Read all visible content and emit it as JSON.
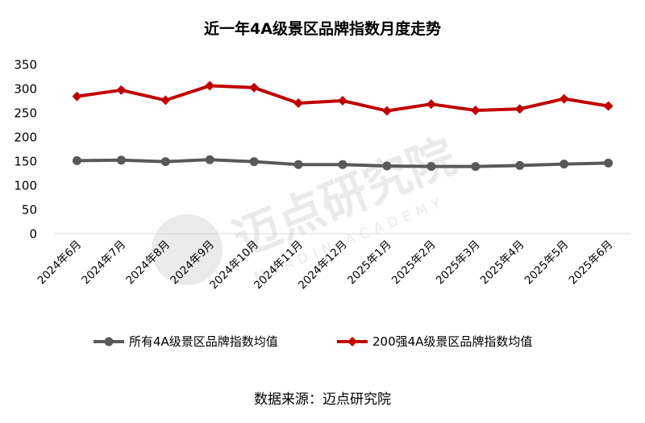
{
  "watermark": {
    "cn": "迈点研究院",
    "en": "MEADIN ACADEMY"
  },
  "source_text": "数据来源：迈点研究院",
  "chart_data": {
    "type": "line",
    "title": "近一年4A级景区品牌指数月度走势",
    "xlabel": "",
    "ylabel": "",
    "ylim": [
      0,
      350
    ],
    "yticks": [
      0,
      50,
      100,
      150,
      200,
      250,
      300,
      350
    ],
    "grid": false,
    "legend_position": "bottom",
    "categories": [
      "2024年6月",
      "2024年7月",
      "2024年8月",
      "2024年9月",
      "2024年10月",
      "2024年11月",
      "2024年12月",
      "2025年1月",
      "2025年2月",
      "2025年3月",
      "2025年4月",
      "2025年5月",
      "2025年6月"
    ],
    "series": [
      {
        "name": "所有4A级景区品牌指数均值",
        "color": "#595959",
        "marker": "circle",
        "values": [
          151,
          152,
          149,
          153,
          149,
          143,
          143,
          140,
          139,
          139,
          141,
          144,
          146
        ]
      },
      {
        "name": "200强4A级景区品牌指数均值",
        "color": "#c00000",
        "marker": "diamond",
        "values": [
          284,
          297,
          276,
          306,
          302,
          270,
          275,
          254,
          268,
          255,
          258,
          279,
          264
        ]
      }
    ]
  }
}
